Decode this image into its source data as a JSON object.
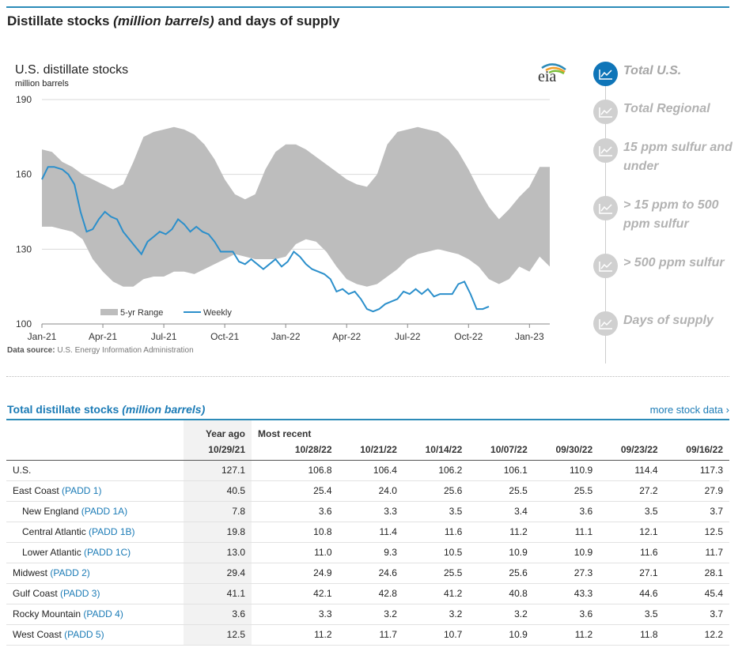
{
  "page_title": {
    "main": "Distillate stocks ",
    "italic": "(million barrels)",
    "rest": " and days of supply"
  },
  "chart_data": {
    "type": "area",
    "title": "U.S. distillate stocks",
    "ylabel": "million barrels",
    "ylim": [
      100,
      190
    ],
    "yticks": [
      "190",
      "160",
      "130",
      "100"
    ],
    "ytick_values": [
      190,
      160,
      130,
      100
    ],
    "xlim": [
      0,
      25
    ],
    "xticks": [
      {
        "label": "Jan-21",
        "m": 0
      },
      {
        "label": "Apr-21",
        "m": 3
      },
      {
        "label": "Jul-21",
        "m": 6
      },
      {
        "label": "Oct-21",
        "m": 9
      },
      {
        "label": "Jan-22",
        "m": 12
      },
      {
        "label": "Apr-22",
        "m": 15
      },
      {
        "label": "Jul-22",
        "m": 18
      },
      {
        "label": "Oct-22",
        "m": 21
      },
      {
        "label": "Jan-23",
        "m": 24
      }
    ],
    "legend": {
      "range_label": "5-yr Range",
      "weekly_label": "Weekly",
      "position": "bottom-left"
    },
    "colors": {
      "range": "#bdbdbd",
      "weekly": "#2b8fcb"
    },
    "range_band": {
      "m": [
        0,
        0.5,
        1,
        1.5,
        2,
        2.5,
        3,
        3.5,
        4,
        4.5,
        5,
        5.5,
        6,
        6.5,
        7,
        7.5,
        8,
        8.5,
        9,
        9.5,
        10,
        10.5,
        11,
        11.5,
        12,
        12.5,
        13,
        13.5,
        14,
        14.5,
        15,
        15.5,
        16,
        16.5,
        17,
        17.5,
        18,
        18.5,
        19,
        19.5,
        20,
        20.5,
        21,
        21.5,
        22,
        22.5,
        23,
        23.5,
        24,
        24.5,
        25
      ],
      "high": [
        170,
        169,
        165,
        163,
        160,
        158,
        156,
        154,
        156,
        165,
        175,
        177,
        178,
        179,
        178,
        176,
        172,
        166,
        158,
        152,
        150,
        152,
        162,
        169,
        172,
        172,
        170,
        167,
        164,
        161,
        158,
        156,
        155,
        160,
        172,
        177,
        178,
        179,
        178,
        177,
        174,
        169,
        162,
        154,
        147,
        142,
        146,
        151,
        155,
        163,
        163
      ],
      "low": [
        139,
        139,
        138,
        137,
        134,
        126,
        121,
        117,
        115,
        115,
        118,
        119,
        119,
        121,
        121,
        120,
        122,
        124,
        126,
        128,
        127,
        126,
        126,
        126,
        127,
        132,
        134,
        133,
        129,
        123,
        118,
        116,
        115,
        116,
        119,
        122,
        126,
        128,
        129,
        130,
        129,
        128,
        126,
        123,
        118,
        116,
        118,
        123,
        121,
        127,
        123
      ]
    },
    "series": [
      {
        "name": "Weekly",
        "m": [
          0,
          0.3,
          0.6,
          1,
          1.3,
          1.6,
          1.9,
          2.2,
          2.5,
          2.8,
          3.1,
          3.4,
          3.7,
          4.0,
          4.3,
          4.6,
          4.9,
          5.2,
          5.5,
          5.8,
          6.1,
          6.4,
          6.7,
          7.0,
          7.3,
          7.6,
          7.9,
          8.2,
          8.5,
          8.8,
          9.1,
          9.4,
          9.7,
          10.0,
          10.3,
          10.6,
          10.9,
          11.2,
          11.5,
          11.8,
          12.1,
          12.4,
          12.7,
          13.0,
          13.3,
          13.6,
          13.9,
          14.2,
          14.5,
          14.8,
          15.1,
          15.4,
          15.7,
          16.0,
          16.3,
          16.6,
          16.9,
          17.2,
          17.5,
          17.8,
          18.1,
          18.4,
          18.7,
          19.0,
          19.3,
          19.6,
          19.9,
          20.2,
          20.5,
          20.8,
          21.1,
          21.4,
          21.7,
          22.0
        ],
        "values": [
          158,
          163,
          163,
          162,
          160,
          156,
          145,
          137,
          138,
          142,
          145,
          143,
          142,
          137,
          134,
          131,
          128,
          133,
          135,
          137,
          136,
          138,
          142,
          140,
          137,
          139,
          137,
          136,
          133,
          129,
          129,
          129,
          125,
          124,
          126,
          124,
          122,
          124,
          126,
          123,
          125,
          129,
          127,
          124,
          122,
          121,
          120,
          118,
          113,
          114,
          112,
          113,
          110,
          106,
          105,
          106,
          108,
          109,
          110,
          113,
          112,
          114,
          112,
          114,
          111,
          112,
          112,
          112,
          116,
          117,
          112,
          106,
          106,
          107
        ]
      }
    ]
  },
  "logo_text": "eia",
  "source": {
    "label": "Data source:",
    "text": " U.S. Energy Information Administration"
  },
  "nav": [
    {
      "label": "Total U.S.",
      "active": true,
      "icon": "chart-line-icon"
    },
    {
      "label": "Total Regional",
      "active": false,
      "icon": "chart-line-icon"
    },
    {
      "label": "15 ppm sulfur and under",
      "active": false,
      "icon": "chart-line-icon"
    },
    {
      "label": "> 15 ppm to 500 ppm sulfur",
      "active": false,
      "icon": "chart-line-icon"
    },
    {
      "label": "> 500 ppm sulfur",
      "active": false,
      "icon": "chart-line-icon"
    },
    {
      "label": "Days of supply",
      "active": false,
      "icon": "chart-line-icon"
    }
  ],
  "table": {
    "title_main": "Total distillate stocks ",
    "title_italic": "(million barrels)",
    "more_link": "more stock data ›",
    "group_headers": {
      "year_ago": "Year ago",
      "most_recent": "Most recent"
    },
    "columns": [
      "10/29/21",
      "10/28/22",
      "10/21/22",
      "10/14/22",
      "10/07/22",
      "09/30/22",
      "09/23/22",
      "09/16/22"
    ],
    "rows": [
      {
        "label": "U.S.",
        "padd": "",
        "indent": false,
        "values": [
          "127.1",
          "106.8",
          "106.4",
          "106.2",
          "106.1",
          "110.9",
          "114.4",
          "117.3"
        ]
      },
      {
        "label": "East Coast ",
        "padd": "(PADD 1)",
        "indent": false,
        "values": [
          "40.5",
          "25.4",
          "24.0",
          "25.6",
          "25.5",
          "25.5",
          "27.2",
          "27.9"
        ]
      },
      {
        "label": "New England ",
        "padd": "(PADD 1A)",
        "indent": true,
        "values": [
          "7.8",
          "3.6",
          "3.3",
          "3.5",
          "3.4",
          "3.6",
          "3.5",
          "3.7"
        ]
      },
      {
        "label": "Central Atlantic ",
        "padd": "(PADD 1B)",
        "indent": true,
        "values": [
          "19.8",
          "10.8",
          "11.4",
          "11.6",
          "11.2",
          "11.1",
          "12.1",
          "12.5"
        ]
      },
      {
        "label": "Lower Atlantic ",
        "padd": "(PADD 1C)",
        "indent": true,
        "values": [
          "13.0",
          "11.0",
          "9.3",
          "10.5",
          "10.9",
          "10.9",
          "11.6",
          "11.7"
        ]
      },
      {
        "label": "Midwest ",
        "padd": "(PADD 2)",
        "indent": false,
        "values": [
          "29.4",
          "24.9",
          "24.6",
          "25.5",
          "25.6",
          "27.3",
          "27.1",
          "28.1"
        ]
      },
      {
        "label": "Gulf Coast ",
        "padd": "(PADD 3)",
        "indent": false,
        "values": [
          "41.1",
          "42.1",
          "42.8",
          "41.2",
          "40.8",
          "43.3",
          "44.6",
          "45.4"
        ]
      },
      {
        "label": "Rocky Mountain ",
        "padd": "(PADD 4)",
        "indent": false,
        "values": [
          "3.6",
          "3.3",
          "3.2",
          "3.2",
          "3.2",
          "3.6",
          "3.5",
          "3.7"
        ]
      },
      {
        "label": "West Coast ",
        "padd": "(PADD 5)",
        "indent": false,
        "values": [
          "12.5",
          "11.2",
          "11.7",
          "10.7",
          "10.9",
          "11.2",
          "11.8",
          "12.2"
        ]
      }
    ]
  }
}
